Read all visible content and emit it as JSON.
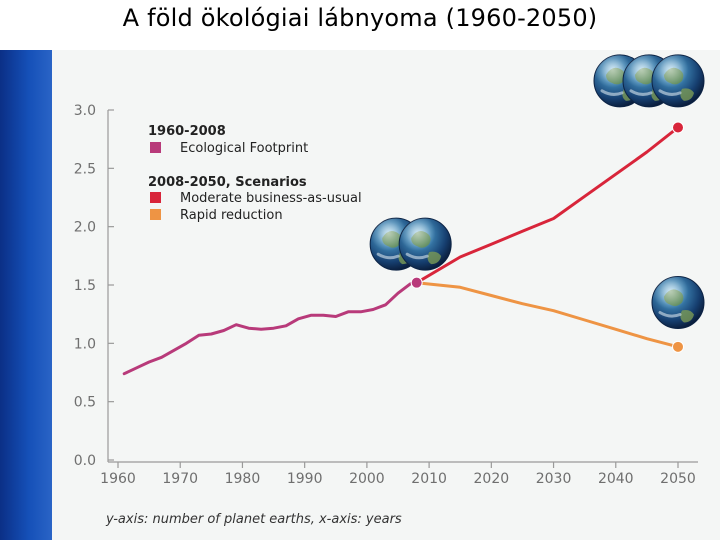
{
  "slide": {
    "title": "A föld ökológiai lábnyoma (1960-2050)"
  },
  "colors": {
    "band": "#1550b8",
    "panel": "#f4f6f5",
    "footprint": "#b83a7a",
    "business_as_usual": "#d8253a",
    "rapid_reduction": "#ee9444",
    "axis": "#777777"
  },
  "icons": [
    "globe-icon"
  ],
  "chart_data": {
    "type": "line",
    "title": "",
    "caption": "y-axis: number of planet earths, x-axis: years",
    "xlim": [
      1960,
      2050
    ],
    "ylim": [
      0,
      3
    ],
    "x_ticks": [
      "1960",
      "1970",
      "1980",
      "1990",
      "2000",
      "2010",
      "2020",
      "2030",
      "2040",
      "2050"
    ],
    "y_ticks": [
      "0.0",
      "0.5",
      "1.0",
      "1.5",
      "2.0",
      "2.5",
      "3.0"
    ],
    "legend": {
      "group1_title": "1960-2008",
      "group1_items": [
        "Ecological Footprint"
      ],
      "group2_title": "2008-2050, Scenarios",
      "group2_items": [
        "Moderate business-as-usual",
        "Rapid reduction"
      ]
    },
    "series": [
      {
        "name": "Ecological Footprint",
        "color": "#b83a7a",
        "x": [
          1961,
          1963,
          1965,
          1967,
          1969,
          1971,
          1973,
          1975,
          1977,
          1979,
          1981,
          1983,
          1985,
          1987,
          1989,
          1991,
          1993,
          1995,
          1997,
          1999,
          2001,
          2003,
          2005,
          2007,
          2008
        ],
        "y": [
          0.74,
          0.79,
          0.84,
          0.88,
          0.94,
          1.0,
          1.07,
          1.08,
          1.11,
          1.16,
          1.13,
          1.12,
          1.13,
          1.15,
          1.21,
          1.24,
          1.24,
          1.23,
          1.27,
          1.27,
          1.29,
          1.33,
          1.43,
          1.51,
          1.52
        ]
      },
      {
        "name": "Moderate business-as-usual",
        "color": "#d8253a",
        "x": [
          2008,
          2015,
          2020,
          2025,
          2030,
          2035,
          2040,
          2045,
          2050
        ],
        "y": [
          1.52,
          1.74,
          1.85,
          1.96,
          2.07,
          2.26,
          2.45,
          2.64,
          2.85
        ]
      },
      {
        "name": "Rapid reduction",
        "color": "#ee9444",
        "x": [
          2008,
          2015,
          2020,
          2025,
          2030,
          2035,
          2040,
          2045,
          2050
        ],
        "y": [
          1.52,
          1.48,
          1.41,
          1.34,
          1.28,
          1.2,
          1.12,
          1.04,
          0.97
        ]
      }
    ],
    "endpoints": [
      {
        "x": 2008,
        "y": 1.52,
        "color": "#b83a7a"
      },
      {
        "x": 2050,
        "y": 2.85,
        "color": "#d8253a"
      },
      {
        "x": 2050,
        "y": 0.97,
        "color": "#ee9444"
      }
    ],
    "globe_groups": [
      {
        "count": 3,
        "near_x": 2050,
        "near_y": 3.25
      },
      {
        "count": 2,
        "near_x": 2008,
        "near_y": 1.85
      },
      {
        "count": 1,
        "near_x": 2050,
        "near_y": 1.35
      }
    ]
  }
}
